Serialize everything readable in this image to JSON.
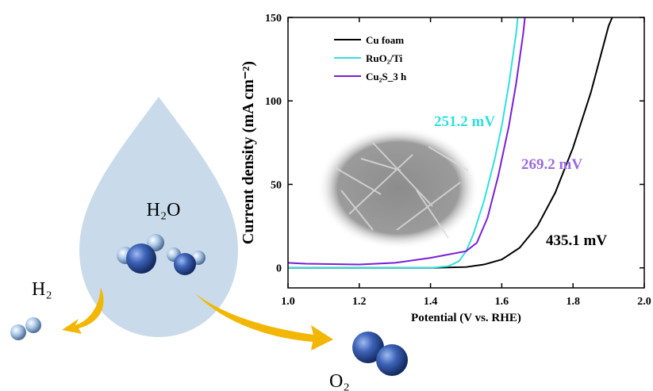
{
  "chart_data": {
    "type": "line",
    "xlabel": "Potential (V vs. RHE)",
    "ylabel": "Current density (mA cm⁻²)",
    "xlim": [
      1.0,
      2.0
    ],
    "ylim": [
      -12,
      150
    ],
    "xticks": [
      {
        "value": 1.0,
        "label": "1.0"
      },
      {
        "value": 1.2,
        "label": "1.2"
      },
      {
        "value": 1.4,
        "label": "1.4"
      },
      {
        "value": 1.6,
        "label": "1.6"
      },
      {
        "value": 1.8,
        "label": "1.8"
      },
      {
        "value": 2.0,
        "label": "2.0"
      }
    ],
    "yticks": [
      0,
      50,
      100,
      150
    ],
    "legend": "upper-left",
    "series": [
      {
        "name": "Cu foam",
        "color": "#000000",
        "x": [
          1.0,
          1.2,
          1.4,
          1.5,
          1.55,
          1.6,
          1.65,
          1.7,
          1.75,
          1.8,
          1.85,
          1.9,
          1.91
        ],
        "values": [
          0,
          0,
          0,
          0.5,
          2,
          5,
          12,
          25,
          45,
          72,
          105,
          145,
          150
        ]
      },
      {
        "name": "RuO₂/Ti",
        "color": "#33dede",
        "x": [
          1.0,
          1.4,
          1.45,
          1.48,
          1.5,
          1.52,
          1.55,
          1.58,
          1.6,
          1.62,
          1.64,
          1.645
        ],
        "values": [
          0,
          0,
          1,
          4,
          10,
          20,
          40,
          65,
          85,
          110,
          140,
          150
        ]
      },
      {
        "name": "Cu₂S_3 h",
        "color": "#7a1fd6",
        "x": [
          1.0,
          1.05,
          1.2,
          1.3,
          1.4,
          1.45,
          1.5,
          1.53,
          1.56,
          1.59,
          1.62,
          1.64,
          1.66,
          1.665
        ],
        "values": [
          3,
          2.5,
          2,
          3,
          6,
          8,
          10,
          15,
          30,
          55,
          85,
          110,
          140,
          150
        ]
      }
    ],
    "annotations": [
      {
        "text": "251.2 mV",
        "color": "#33dede"
      },
      {
        "text": "269.2 mV",
        "color": "#9a6ae0"
      },
      {
        "text": "435.1 mV",
        "color": "#000000"
      }
    ]
  },
  "illustration": {
    "water": "H₂O",
    "hydrogen": "H₂",
    "oxygen": "O₂"
  }
}
